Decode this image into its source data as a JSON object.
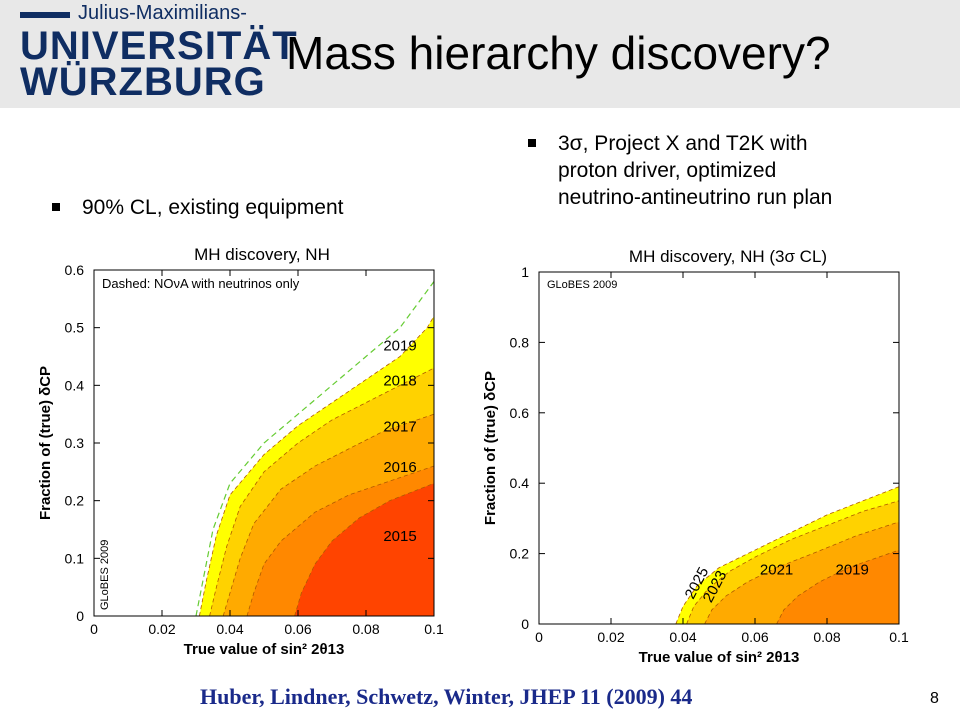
{
  "header": {
    "logo_line1": "Julius-Maximilians-",
    "logo_line2": "UNIVERSITÄT",
    "logo_line3": "WÜRZBURG"
  },
  "slide": {
    "title": "Mass hierarchy discovery?",
    "bullet_left": "90% CL, existing equipment",
    "bullet_right": "3σ, Project X and T2K with\nproton driver, optimized\nneutrino-antineutrino run plan",
    "citation": "Huber, Lindner, Schwetz, Winter, JHEP 11 (2009) 44",
    "page_number": "8"
  },
  "colors": {
    "yellow": "#ffff00",
    "light_orange": "#ffd200",
    "orange": "#ffaa00",
    "dark_orange": "#ff8800",
    "red": "#ff4400",
    "dashed_green": "#66cc33",
    "logo_blue": "#0f2d62"
  },
  "chart_data": [
    {
      "type": "area",
      "title": "MH discovery, NH",
      "xlabel": "True value of sin² 2θ13",
      "ylabel": "Fraction of (true) δCP",
      "xlim": [
        0,
        0.1
      ],
      "ylim": [
        0,
        0.6
      ],
      "x_ticks": [
        "0",
        "0.02",
        "0.04",
        "0.06",
        "0.08",
        "0.1"
      ],
      "y_ticks": [
        "0",
        "0.1",
        "0.2",
        "0.3",
        "0.4",
        "0.5",
        "0.6"
      ],
      "legend_text": "Dashed: NOνA with neutrinos only",
      "watermark": "GLoBES 2009",
      "series": [
        {
          "name": "2019",
          "color": "#ffff00",
          "points": [
            [
              0.031,
              0
            ],
            [
              0.033,
              0.06
            ],
            [
              0.036,
              0.14
            ],
            [
              0.04,
              0.21
            ],
            [
              0.05,
              0.28
            ],
            [
              0.06,
              0.33
            ],
            [
              0.07,
              0.37
            ],
            [
              0.08,
              0.41
            ],
            [
              0.09,
              0.45
            ],
            [
              0.098,
              0.5
            ],
            [
              0.1,
              0.52
            ]
          ]
        },
        {
          "name": "2018",
          "color": "#ffd200",
          "points": [
            [
              0.034,
              0
            ],
            [
              0.036,
              0.05
            ],
            [
              0.039,
              0.12
            ],
            [
              0.043,
              0.19
            ],
            [
              0.05,
              0.25
            ],
            [
              0.06,
              0.3
            ],
            [
              0.07,
              0.34
            ],
            [
              0.08,
              0.37
            ],
            [
              0.09,
              0.4
            ],
            [
              0.1,
              0.43
            ]
          ]
        },
        {
          "name": "2017",
          "color": "#ffaa00",
          "points": [
            [
              0.038,
              0
            ],
            [
              0.04,
              0.04
            ],
            [
              0.043,
              0.1
            ],
            [
              0.047,
              0.16
            ],
            [
              0.055,
              0.22
            ],
            [
              0.065,
              0.26
            ],
            [
              0.075,
              0.29
            ],
            [
              0.085,
              0.32
            ],
            [
              0.1,
              0.35
            ]
          ]
        },
        {
          "name": "2016",
          "color": "#ff8800",
          "points": [
            [
              0.045,
              0
            ],
            [
              0.047,
              0.04
            ],
            [
              0.05,
              0.09
            ],
            [
              0.055,
              0.13
            ],
            [
              0.065,
              0.18
            ],
            [
              0.075,
              0.21
            ],
            [
              0.085,
              0.23
            ],
            [
              0.1,
              0.26
            ]
          ]
        },
        {
          "name": "2015",
          "color": "#ff4400",
          "points": [
            [
              0.059,
              0
            ],
            [
              0.061,
              0.04
            ],
            [
              0.065,
              0.09
            ],
            [
              0.07,
              0.13
            ],
            [
              0.078,
              0.17
            ],
            [
              0.087,
              0.2
            ],
            [
              0.1,
              0.23
            ]
          ]
        }
      ],
      "dashed_curve": {
        "color": "#66cc33",
        "points": [
          [
            0.03,
            0
          ],
          [
            0.032,
            0.06
          ],
          [
            0.035,
            0.15
          ],
          [
            0.04,
            0.23
          ],
          [
            0.05,
            0.3
          ],
          [
            0.06,
            0.35
          ],
          [
            0.07,
            0.4
          ],
          [
            0.08,
            0.45
          ],
          [
            0.09,
            0.5
          ],
          [
            0.1,
            0.58
          ]
        ]
      },
      "labels": [
        {
          "text": "2019",
          "x": 0.09,
          "y": 0.46
        },
        {
          "text": "2018",
          "x": 0.09,
          "y": 0.4
        },
        {
          "text": "2017",
          "x": 0.09,
          "y": 0.32
        },
        {
          "text": "2016",
          "x": 0.09,
          "y": 0.25
        },
        {
          "text": "2015",
          "x": 0.09,
          "y": 0.13
        }
      ]
    },
    {
      "type": "area",
      "title": "MH discovery, NH (3σ CL)",
      "xlabel": "True value of sin² 2θ13",
      "ylabel": "Fraction of (true) δCP",
      "xlim": [
        0,
        0.1
      ],
      "ylim": [
        0,
        1
      ],
      "x_ticks": [
        "0",
        "0.02",
        "0.04",
        "0.06",
        "0.08",
        "0.1"
      ],
      "y_ticks": [
        "0",
        "0.2",
        "0.4",
        "0.6",
        "0.8",
        "1"
      ],
      "watermark": "GLoBES 2009",
      "series": [
        {
          "name": "2025",
          "color": "#ffff00",
          "points": [
            [
              0.038,
              0
            ],
            [
              0.04,
              0.05
            ],
            [
              0.044,
              0.11
            ],
            [
              0.05,
              0.16
            ],
            [
              0.06,
              0.21
            ],
            [
              0.07,
              0.26
            ],
            [
              0.08,
              0.31
            ],
            [
              0.09,
              0.35
            ],
            [
              0.1,
              0.39
            ]
          ]
        },
        {
          "name": "2023",
          "color": "#ffd200",
          "points": [
            [
              0.041,
              0
            ],
            [
              0.043,
              0.05
            ],
            [
              0.047,
              0.1
            ],
            [
              0.053,
              0.15
            ],
            [
              0.06,
              0.19
            ],
            [
              0.07,
              0.24
            ],
            [
              0.08,
              0.28
            ],
            [
              0.09,
              0.32
            ],
            [
              0.1,
              0.35
            ]
          ]
        },
        {
          "name": "2021",
          "color": "#ffaa00",
          "points": [
            [
              0.046,
              0
            ],
            [
              0.048,
              0.04
            ],
            [
              0.052,
              0.08
            ],
            [
              0.058,
              0.12
            ],
            [
              0.066,
              0.16
            ],
            [
              0.076,
              0.2
            ],
            [
              0.088,
              0.25
            ],
            [
              0.1,
              0.29
            ]
          ]
        },
        {
          "name": "2019",
          "color": "#ff8800",
          "points": [
            [
              0.066,
              0
            ],
            [
              0.068,
              0.04
            ],
            [
              0.072,
              0.08
            ],
            [
              0.078,
              0.12
            ],
            [
              0.086,
              0.16
            ],
            [
              0.1,
              0.21
            ]
          ]
        }
      ],
      "labels": [
        {
          "text": "2025",
          "x": 0.045,
          "y": 0.11,
          "rotate": -62
        },
        {
          "text": "2023",
          "x": 0.05,
          "y": 0.1,
          "rotate": -62
        },
        {
          "text": "2021",
          "x": 0.066,
          "y": 0.14
        },
        {
          "text": "2019",
          "x": 0.087,
          "y": 0.14
        }
      ]
    }
  ]
}
